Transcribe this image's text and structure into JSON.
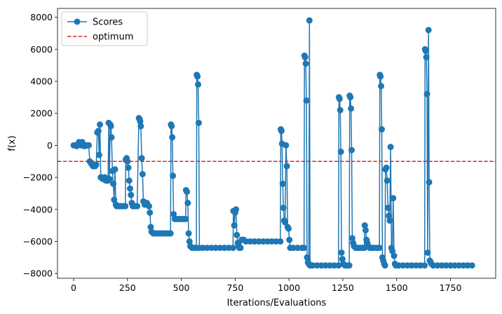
{
  "chart_data": {
    "type": "line",
    "xlabel": "Iterations/Evaluations",
    "ylabel": "f(x)",
    "xlim": [
      -75,
      1960
    ],
    "ylim": [
      -8300,
      8550
    ],
    "xticks": [
      0,
      250,
      500,
      750,
      1000,
      1250,
      1500,
      1750
    ],
    "yticks": [
      -8000,
      -6000,
      -4000,
      -2000,
      0,
      2000,
      4000,
      6000,
      8000
    ],
    "grid": false,
    "legend": {
      "placement": "top-left"
    },
    "optimum": {
      "name": "optimum",
      "value": -1000,
      "color": "#d62728",
      "style": "dashed"
    },
    "series": [
      {
        "name": "Scores",
        "color": "#1f77b4",
        "marker": "circle",
        "points": [
          [
            0,
            0
          ],
          [
            10,
            0
          ],
          [
            15,
            -50
          ],
          [
            20,
            50
          ],
          [
            25,
            200
          ],
          [
            30,
            100
          ],
          [
            35,
            0
          ],
          [
            40,
            200
          ],
          [
            45,
            0
          ],
          [
            50,
            -50
          ],
          [
            55,
            0
          ],
          [
            60,
            -10
          ],
          [
            65,
            0
          ],
          [
            70,
            0
          ],
          [
            75,
            -1000
          ],
          [
            80,
            -1100
          ],
          [
            85,
            -1200
          ],
          [
            90,
            -1300
          ],
          [
            95,
            -1300
          ],
          [
            100,
            -1300
          ],
          [
            105,
            -1200
          ],
          [
            110,
            800
          ],
          [
            115,
            900
          ],
          [
            118,
            -600
          ],
          [
            122,
            1300
          ],
          [
            126,
            -2000
          ],
          [
            130,
            -2000
          ],
          [
            135,
            -2100
          ],
          [
            140,
            -2100
          ],
          [
            145,
            -2000
          ],
          [
            150,
            -2200
          ],
          [
            155,
            -2200
          ],
          [
            160,
            -2200
          ],
          [
            163,
            1400
          ],
          [
            166,
            -2100
          ],
          [
            170,
            1300
          ],
          [
            173,
            1200
          ],
          [
            176,
            500
          ],
          [
            180,
            -1600
          ],
          [
            184,
            -2400
          ],
          [
            188,
            -3400
          ],
          [
            192,
            -1500
          ],
          [
            196,
            -3700
          ],
          [
            200,
            -3800
          ],
          [
            210,
            -3800
          ],
          [
            220,
            -3800
          ],
          [
            230,
            -3800
          ],
          [
            240,
            -3800
          ],
          [
            242,
            -900
          ],
          [
            246,
            -800
          ],
          [
            250,
            -1000
          ],
          [
            254,
            -1400
          ],
          [
            258,
            -2200
          ],
          [
            262,
            -2700
          ],
          [
            266,
            -3100
          ],
          [
            270,
            -3600
          ],
          [
            275,
            -3800
          ],
          [
            285,
            -3800
          ],
          [
            295,
            -3800
          ],
          [
            303,
            1700
          ],
          [
            306,
            1650
          ],
          [
            309,
            1500
          ],
          [
            312,
            1200
          ],
          [
            316,
            -800
          ],
          [
            320,
            -1800
          ],
          [
            324,
            -3500
          ],
          [
            330,
            -3700
          ],
          [
            340,
            -3600
          ],
          [
            350,
            -3800
          ],
          [
            354,
            -4200
          ],
          [
            358,
            -5100
          ],
          [
            362,
            -5400
          ],
          [
            370,
            -5500
          ],
          [
            380,
            -5500
          ],
          [
            390,
            -5500
          ],
          [
            400,
            -5500
          ],
          [
            410,
            -5500
          ],
          [
            420,
            -5500
          ],
          [
            430,
            -5500
          ],
          [
            440,
            -5500
          ],
          [
            450,
            -5500
          ],
          [
            452,
            1300
          ],
          [
            455,
            1200
          ],
          [
            458,
            500
          ],
          [
            461,
            -1900
          ],
          [
            464,
            -4300
          ],
          [
            470,
            -4600
          ],
          [
            480,
            -4600
          ],
          [
            490,
            -4600
          ],
          [
            500,
            -4600
          ],
          [
            510,
            -4600
          ],
          [
            520,
            -4600
          ],
          [
            522,
            -2800
          ],
          [
            526,
            -2900
          ],
          [
            530,
            -3600
          ],
          [
            534,
            -5500
          ],
          [
            538,
            -6000
          ],
          [
            542,
            -6300
          ],
          [
            550,
            -6400
          ],
          [
            560,
            -6400
          ],
          [
            570,
            -6400
          ],
          [
            572,
            4400
          ],
          [
            575,
            4300
          ],
          [
            578,
            3800
          ],
          [
            581,
            1400
          ],
          [
            584,
            -6400
          ],
          [
            600,
            -6400
          ],
          [
            620,
            -6400
          ],
          [
            640,
            -6400
          ],
          [
            660,
            -6400
          ],
          [
            680,
            -6400
          ],
          [
            700,
            -6400
          ],
          [
            720,
            -6400
          ],
          [
            740,
            -6400
          ],
          [
            742,
            -4100
          ],
          [
            746,
            -5000
          ],
          [
            750,
            -4200
          ],
          [
            754,
            -4000
          ],
          [
            758,
            -5600
          ],
          [
            762,
            -6100
          ],
          [
            766,
            -6300
          ],
          [
            770,
            -6400
          ],
          [
            775,
            -6400
          ],
          [
            780,
            -5900
          ],
          [
            790,
            -5900
          ],
          [
            800,
            -6000
          ],
          [
            820,
            -6000
          ],
          [
            840,
            -6000
          ],
          [
            860,
            -6000
          ],
          [
            880,
            -6000
          ],
          [
            900,
            -6000
          ],
          [
            920,
            -6000
          ],
          [
            940,
            -6000
          ],
          [
            960,
            -6000
          ],
          [
            962,
            1000
          ],
          [
            965,
            900
          ],
          [
            968,
            100
          ],
          [
            971,
            -2400
          ],
          [
            974,
            -3900
          ],
          [
            978,
            -4700
          ],
          [
            982,
            -4800
          ],
          [
            986,
            0
          ],
          [
            990,
            -1300
          ],
          [
            994,
            -5100
          ],
          [
            998,
            -5200
          ],
          [
            1002,
            -5900
          ],
          [
            1006,
            -6400
          ],
          [
            1020,
            -6400
          ],
          [
            1040,
            -6400
          ],
          [
            1060,
            -6400
          ],
          [
            1070,
            -6400
          ],
          [
            1072,
            5600
          ],
          [
            1075,
            5500
          ],
          [
            1078,
            5100
          ],
          [
            1081,
            2800
          ],
          [
            1084,
            -7000
          ],
          [
            1088,
            -7300
          ],
          [
            1092,
            -7400
          ],
          [
            1095,
            7800
          ],
          [
            1098,
            -7500
          ],
          [
            1110,
            -7500
          ],
          [
            1130,
            -7500
          ],
          [
            1150,
            -7500
          ],
          [
            1170,
            -7500
          ],
          [
            1190,
            -7500
          ],
          [
            1210,
            -7500
          ],
          [
            1230,
            -7500
          ],
          [
            1232,
            3000
          ],
          [
            1235,
            2900
          ],
          [
            1238,
            2200
          ],
          [
            1241,
            -400
          ],
          [
            1244,
            -6700
          ],
          [
            1248,
            -7100
          ],
          [
            1252,
            -7400
          ],
          [
            1260,
            -7500
          ],
          [
            1270,
            -7500
          ],
          [
            1280,
            -7500
          ],
          [
            1282,
            3100
          ],
          [
            1285,
            3000
          ],
          [
            1288,
            2300
          ],
          [
            1291,
            -300
          ],
          [
            1294,
            -5800
          ],
          [
            1298,
            -6100
          ],
          [
            1302,
            -6300
          ],
          [
            1310,
            -6400
          ],
          [
            1320,
            -6400
          ],
          [
            1330,
            -6400
          ],
          [
            1340,
            -6400
          ],
          [
            1350,
            -6400
          ],
          [
            1352,
            -5000
          ],
          [
            1356,
            -5300
          ],
          [
            1360,
            -5900
          ],
          [
            1364,
            -6100
          ],
          [
            1368,
            -6300
          ],
          [
            1375,
            -6400
          ],
          [
            1385,
            -6400
          ],
          [
            1395,
            -6400
          ],
          [
            1410,
            -6400
          ],
          [
            1420,
            -6400
          ],
          [
            1422,
            4400
          ],
          [
            1425,
            4300
          ],
          [
            1428,
            3700
          ],
          [
            1431,
            1000
          ],
          [
            1434,
            -7000
          ],
          [
            1438,
            -7200
          ],
          [
            1442,
            -7400
          ],
          [
            1446,
            -7500
          ],
          [
            1448,
            -1500
          ],
          [
            1452,
            -1400
          ],
          [
            1456,
            -2200
          ],
          [
            1460,
            -3900
          ],
          [
            1464,
            -4400
          ],
          [
            1468,
            -4700
          ],
          [
            1472,
            -100
          ],
          [
            1476,
            -6400
          ],
          [
            1480,
            -6600
          ],
          [
            1484,
            -3300
          ],
          [
            1488,
            -6900
          ],
          [
            1492,
            -7400
          ],
          [
            1496,
            -7500
          ],
          [
            1510,
            -7500
          ],
          [
            1530,
            -7500
          ],
          [
            1550,
            -7500
          ],
          [
            1570,
            -7500
          ],
          [
            1590,
            -7500
          ],
          [
            1610,
            -7500
          ],
          [
            1630,
            -7500
          ],
          [
            1632,
            6000
          ],
          [
            1635,
            5900
          ],
          [
            1638,
            5500
          ],
          [
            1641,
            3200
          ],
          [
            1644,
            -6700
          ],
          [
            1648,
            7200
          ],
          [
            1651,
            -2300
          ],
          [
            1654,
            -7200
          ],
          [
            1658,
            -7300
          ],
          [
            1662,
            -7400
          ],
          [
            1670,
            -7500
          ],
          [
            1690,
            -7500
          ],
          [
            1710,
            -7500
          ],
          [
            1730,
            -7500
          ],
          [
            1750,
            -7500
          ],
          [
            1770,
            -7500
          ],
          [
            1790,
            -7500
          ],
          [
            1810,
            -7500
          ],
          [
            1830,
            -7500
          ],
          [
            1850,
            -7500
          ]
        ]
      }
    ]
  }
}
